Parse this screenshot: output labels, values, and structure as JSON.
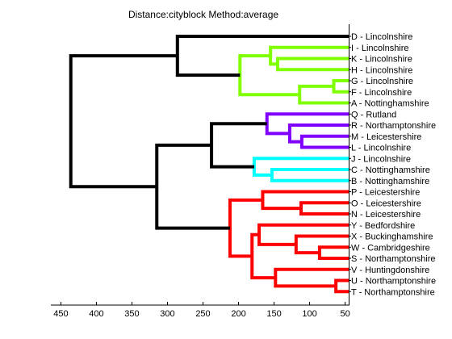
{
  "chart_data": {
    "type": "dendrogram",
    "title": "Distance:cityblock Method:average",
    "orientation": "left",
    "xaxis": {
      "reversed": true,
      "xlim": [
        455,
        45
      ],
      "ticks": [
        450,
        400,
        350,
        300,
        250,
        200,
        150,
        100,
        50
      ],
      "tick_labels": [
        "450",
        "400",
        "350",
        "300",
        "250",
        "200",
        "150",
        "100",
        "50"
      ]
    },
    "leaves": [
      "D - Lincolnshire",
      "I - Lincolnshire",
      "K - Lincolnshire",
      "H - Lincolnshire",
      "G - Lincolnshire",
      "F - Lincolnshire",
      "A - Nottinghamshire",
      "Q - Rutland",
      "R - Northamptonshire",
      "M - Leicestershire",
      "L - Lincolnshire",
      "J - Lincolnshire",
      "C - Nottinghamshire",
      "B - Nottinghamshire",
      "P - Leicestershire",
      "O - Leicestershire",
      "N - Leicestershire",
      "Y - Bedfordshire",
      "X - Buckinghamshire",
      "W - Cambridgeshire",
      "S - Northamptonshire",
      "V - Huntingdonshire",
      "U - Northamptonshire",
      "T - Northamptonshire"
    ],
    "colors": {
      "black": "#000000",
      "green": "#80ff00",
      "purple": "#8000ff",
      "cyan": "#00ffff",
      "red": "#ff0000"
    },
    "merges": [
      {
        "left": "K - Lincolnshire",
        "right": "H - Lincolnshire",
        "height": 145,
        "color": "green"
      },
      {
        "left": "I - Lincolnshire",
        "right": "c1",
        "height": 155,
        "color": "green"
      },
      {
        "left": "G - Lincolnshire",
        "right": "F - Lincolnshire",
        "height": 66,
        "color": "green"
      },
      {
        "left": "c3",
        "right": "A - Nottinghamshire",
        "height": 114,
        "color": "green"
      },
      {
        "left": "c2",
        "right": "c4",
        "height": 198,
        "color": "green"
      },
      {
        "left": "D - Lincolnshire",
        "right": "c5",
        "height": 286,
        "color": "black"
      },
      {
        "left": "M - Leicestershire",
        "right": "L - Lincolnshire",
        "height": 111,
        "color": "purple"
      },
      {
        "left": "R - Northamptonshire",
        "right": "c7",
        "height": 128,
        "color": "purple"
      },
      {
        "left": "Q - Rutland",
        "right": "c8",
        "height": 160,
        "color": "purple"
      },
      {
        "left": "C - Nottinghamshire",
        "right": "B - Nottinghamshire",
        "height": 153,
        "color": "cyan"
      },
      {
        "left": "J - Lincolnshire",
        "right": "c10",
        "height": 178,
        "color": "cyan"
      },
      {
        "left": "c9",
        "right": "c11",
        "height": 238,
        "color": "black"
      },
      {
        "left": "O - Leicestershire",
        "right": "N - Leicestershire",
        "height": 112,
        "color": "red"
      },
      {
        "left": "P - Leicestershire",
        "right": "c13",
        "height": 166,
        "color": "red"
      },
      {
        "left": "W - Cambridgeshire",
        "right": "S - Northamptonshire",
        "height": 86,
        "color": "red"
      },
      {
        "left": "X - Buckinghamshire",
        "right": "c15",
        "height": 119,
        "color": "red"
      },
      {
        "left": "Y - Bedfordshire",
        "right": "c16",
        "height": 171,
        "color": "red"
      },
      {
        "left": "U - Northamptonshire",
        "right": "T - Northamptonshire",
        "height": 63,
        "color": "red"
      },
      {
        "left": "V - Huntingdonshire",
        "right": "c18",
        "height": 148,
        "color": "red"
      },
      {
        "left": "c17",
        "right": "c19",
        "height": 181,
        "color": "red"
      },
      {
        "left": "c14",
        "right": "c20",
        "height": 212,
        "color": "red"
      },
      {
        "left": "c12",
        "right": "c21",
        "height": 315,
        "color": "black"
      },
      {
        "left": "c6",
        "right": "c22",
        "height": 436,
        "color": "black"
      }
    ]
  }
}
